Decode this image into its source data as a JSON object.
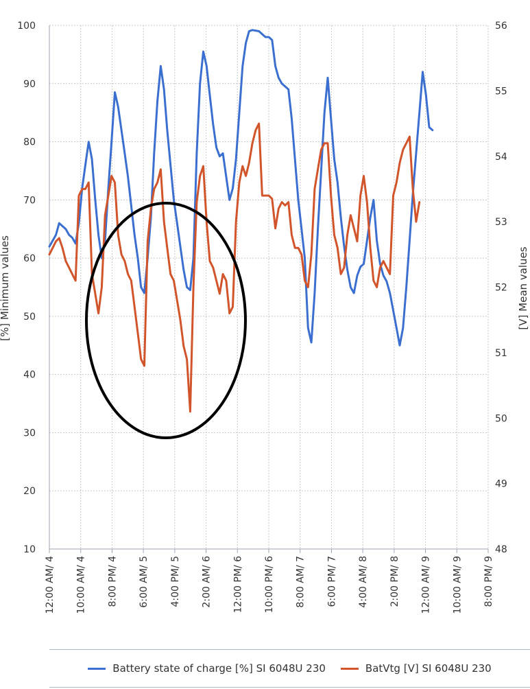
{
  "chart_data": {
    "type": "line",
    "title": "",
    "ylabel_left": "[%] Minimum values",
    "ylabel_right": "[V] Mean values",
    "ylim_left": [
      10,
      100
    ],
    "yticks_left": [
      "10",
      "20",
      "30",
      "40",
      "50",
      "60",
      "70",
      "80",
      "90",
      "100"
    ],
    "ylim_right": [
      48,
      56
    ],
    "yticks_right": [
      "48",
      "49",
      "50",
      "51",
      "52",
      "53",
      "54",
      "55",
      "56"
    ],
    "xlim_hours": [
      0,
      134
    ],
    "x_unit": "hours since 12:00 AM/4",
    "xticks": [
      "12:00 AM/ 4",
      "10:00 AM/ 4",
      "8:00 PM/ 4",
      "6:00 AM/ 5",
      "4:00 PM/ 5",
      "2:00 AM/ 6",
      "12:00 PM/ 6",
      "10:00 PM/ 6",
      "8:00 AM/ 7",
      "6:00 PM/ 7",
      "4:00 AM/ 8",
      "2:00 PM/ 8",
      "12:00 AM/ 9",
      "10:00 AM/ 9",
      "8:00 PM/ 9"
    ],
    "grid": true,
    "legend_position": "bottom",
    "series": [
      {
        "name": "Battery state of charge [%] SI 6048U 230",
        "axis": "left",
        "color": "#3a6fd0",
        "points": [
          [
            0,
            62
          ],
          [
            1,
            63
          ],
          [
            2,
            64
          ],
          [
            3,
            66
          ],
          [
            4,
            65.5
          ],
          [
            5,
            65
          ],
          [
            6,
            64
          ],
          [
            7,
            63.5
          ],
          [
            8,
            62.5
          ],
          [
            9,
            66
          ],
          [
            10,
            72
          ],
          [
            11,
            76
          ],
          [
            12,
            80
          ],
          [
            13,
            77
          ],
          [
            14,
            70
          ],
          [
            15,
            64
          ],
          [
            16,
            60
          ],
          [
            17,
            63
          ],
          [
            18,
            72
          ],
          [
            19,
            80
          ],
          [
            20,
            88.5
          ],
          [
            21,
            86
          ],
          [
            22,
            82
          ],
          [
            23,
            78
          ],
          [
            24,
            74
          ],
          [
            25,
            69
          ],
          [
            26,
            64
          ],
          [
            27,
            60
          ],
          [
            28,
            55
          ],
          [
            29,
            54
          ],
          [
            30,
            60
          ],
          [
            31,
            67
          ],
          [
            32,
            78
          ],
          [
            33,
            87
          ],
          [
            34,
            93
          ],
          [
            35,
            89
          ],
          [
            36,
            82
          ],
          [
            37,
            76
          ],
          [
            38,
            70
          ],
          [
            39,
            66
          ],
          [
            40,
            62
          ],
          [
            41,
            58
          ],
          [
            42,
            55
          ],
          [
            43,
            54.5
          ],
          [
            44,
            60
          ],
          [
            45,
            78
          ],
          [
            46,
            90
          ],
          [
            47,
            95.5
          ],
          [
            48,
            93
          ],
          [
            49,
            88
          ],
          [
            50,
            83
          ],
          [
            51,
            79
          ],
          [
            52,
            77.5
          ],
          [
            53,
            78
          ],
          [
            54,
            74
          ],
          [
            55,
            70
          ],
          [
            56,
            72
          ],
          [
            57,
            77
          ],
          [
            58,
            85
          ],
          [
            59,
            93
          ],
          [
            60,
            97
          ],
          [
            61,
            99
          ],
          [
            62,
            99.2
          ],
          [
            63,
            99.1
          ],
          [
            64,
            99
          ],
          [
            65,
            98.5
          ],
          [
            66,
            98
          ],
          [
            67,
            98
          ],
          [
            68,
            97.5
          ],
          [
            69,
            93
          ],
          [
            70,
            91
          ],
          [
            71,
            90
          ],
          [
            72,
            89.5
          ],
          [
            73,
            89
          ],
          [
            74,
            84
          ],
          [
            75,
            77
          ],
          [
            76,
            70
          ],
          [
            77,
            65
          ],
          [
            78,
            60
          ],
          [
            79,
            48
          ],
          [
            80,
            45.5
          ],
          [
            81,
            54
          ],
          [
            82,
            65
          ],
          [
            83,
            75
          ],
          [
            84,
            85
          ],
          [
            85,
            91
          ],
          [
            86,
            84
          ],
          [
            87,
            77
          ],
          [
            88,
            73
          ],
          [
            89,
            67
          ],
          [
            90,
            62
          ],
          [
            91,
            58
          ],
          [
            92,
            55
          ],
          [
            93,
            54
          ],
          [
            94,
            57
          ],
          [
            95,
            58.5
          ],
          [
            96,
            59
          ],
          [
            97,
            63
          ],
          [
            98,
            67
          ],
          [
            99,
            70
          ],
          [
            100,
            63
          ],
          [
            101,
            59
          ],
          [
            102,
            57
          ],
          [
            103,
            56
          ],
          [
            104,
            54
          ],
          [
            105,
            51
          ],
          [
            106,
            48
          ],
          [
            107,
            45
          ],
          [
            108,
            48
          ],
          [
            109,
            55
          ],
          [
            110,
            63
          ],
          [
            111,
            71
          ],
          [
            112,
            78
          ],
          [
            113,
            85
          ],
          [
            114,
            92
          ],
          [
            115,
            88
          ],
          [
            116,
            82.5
          ],
          [
            117,
            82
          ]
        ]
      },
      {
        "name": "BatVtg [V] SI 6048U 230",
        "axis": "right",
        "color": "#d1542a",
        "points": [
          [
            0,
            52.5
          ],
          [
            1,
            52.6
          ],
          [
            2,
            52.7
          ],
          [
            3,
            52.75
          ],
          [
            4,
            52.6
          ],
          [
            5,
            52.4
          ],
          [
            6,
            52.3
          ],
          [
            7,
            52.2
          ],
          [
            8,
            52.1
          ],
          [
            9,
            53.4
          ],
          [
            10,
            53.5
          ],
          [
            11,
            53.5
          ],
          [
            12,
            53.6
          ],
          [
            13,
            52.2
          ],
          [
            14,
            51.9
          ],
          [
            15,
            51.6
          ],
          [
            16,
            52.0
          ],
          [
            17,
            53.1
          ],
          [
            18,
            53.4
          ],
          [
            19,
            53.7
          ],
          [
            20,
            53.6
          ],
          [
            21,
            52.8
          ],
          [
            22,
            52.5
          ],
          [
            23,
            52.4
          ],
          [
            24,
            52.2
          ],
          [
            25,
            52.1
          ],
          [
            26,
            51.7
          ],
          [
            27,
            51.3
          ],
          [
            28,
            50.9
          ],
          [
            29,
            50.8
          ],
          [
            30,
            52.7
          ],
          [
            31,
            53.2
          ],
          [
            32,
            53.5
          ],
          [
            33,
            53.6
          ],
          [
            34,
            53.8
          ],
          [
            35,
            53.0
          ],
          [
            36,
            52.6
          ],
          [
            37,
            52.2
          ],
          [
            38,
            52.1
          ],
          [
            39,
            51.8
          ],
          [
            40,
            51.5
          ],
          [
            41,
            51.1
          ],
          [
            42,
            50.9
          ],
          [
            43,
            50.1
          ],
          [
            44,
            52.0
          ],
          [
            45,
            53.3
          ],
          [
            46,
            53.7
          ],
          [
            47,
            53.85
          ],
          [
            48,
            53.0
          ],
          [
            49,
            52.4
          ],
          [
            50,
            52.3
          ],
          [
            51,
            52.1
          ],
          [
            52,
            51.9
          ],
          [
            53,
            52.2
          ],
          [
            54,
            52.1
          ],
          [
            55,
            51.6
          ],
          [
            56,
            51.7
          ],
          [
            57,
            53.0
          ],
          [
            58,
            53.6
          ],
          [
            59,
            53.85
          ],
          [
            60,
            53.7
          ],
          [
            61,
            53.9
          ],
          [
            62,
            54.2
          ],
          [
            63,
            54.4
          ],
          [
            64,
            54.5
          ],
          [
            65,
            53.4
          ],
          [
            66,
            53.4
          ],
          [
            67,
            53.4
          ],
          [
            68,
            53.35
          ],
          [
            69,
            52.9
          ],
          [
            70,
            53.2
          ],
          [
            71,
            53.3
          ],
          [
            72,
            53.25
          ],
          [
            73,
            53.3
          ],
          [
            74,
            52.8
          ],
          [
            75,
            52.6
          ],
          [
            76,
            52.6
          ],
          [
            77,
            52.5
          ],
          [
            78,
            52.1
          ],
          [
            79,
            52.0
          ],
          [
            80,
            52.5
          ],
          [
            81,
            53.5
          ],
          [
            82,
            53.8
          ],
          [
            83,
            54.1
          ],
          [
            84,
            54.2
          ],
          [
            85,
            54.2
          ],
          [
            86,
            53.4
          ],
          [
            87,
            52.8
          ],
          [
            88,
            52.6
          ],
          [
            89,
            52.2
          ],
          [
            90,
            52.3
          ],
          [
            91,
            52.8
          ],
          [
            92,
            53.1
          ],
          [
            93,
            52.9
          ],
          [
            94,
            52.7
          ],
          [
            95,
            53.4
          ],
          [
            96,
            53.7
          ],
          [
            97,
            53.3
          ],
          [
            98,
            52.6
          ],
          [
            99,
            52.1
          ],
          [
            100,
            52.0
          ],
          [
            101,
            52.3
          ],
          [
            102,
            52.4
          ],
          [
            103,
            52.3
          ],
          [
            104,
            52.2
          ],
          [
            105,
            53.4
          ],
          [
            106,
            53.6
          ],
          [
            107,
            53.9
          ],
          [
            108,
            54.1
          ],
          [
            109,
            54.2
          ],
          [
            110,
            54.3
          ],
          [
            111,
            53.5
          ],
          [
            112,
            53.0
          ],
          [
            113,
            53.3
          ]
        ]
      }
    ],
    "annotation": "ellipse around the dips on 5 and 6"
  }
}
